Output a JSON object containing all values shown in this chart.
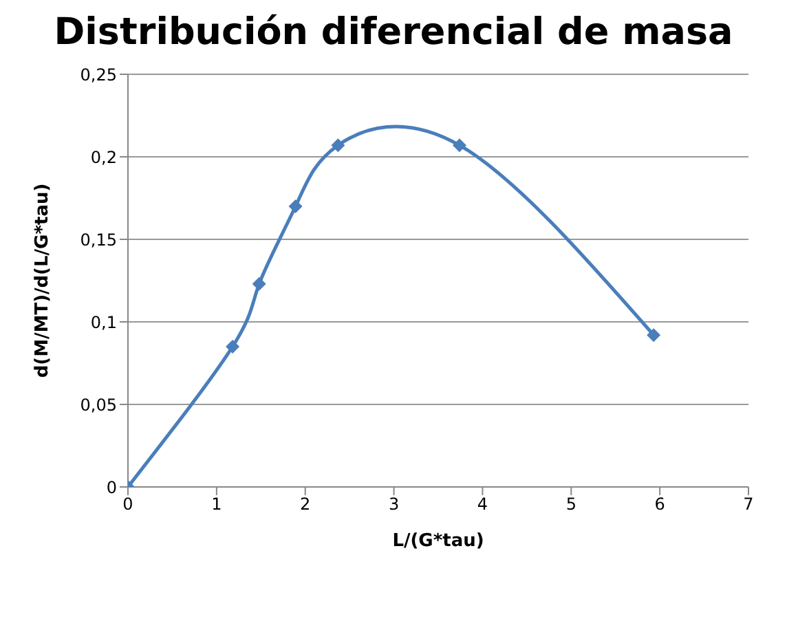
{
  "chart_data": {
    "type": "line",
    "title": "Distribución diferencial de masa",
    "xlabel": "L/(G*tau)",
    "ylabel": "d(M/MT)/d(L/G*tau)",
    "x": [
      0,
      1.18,
      1.48,
      1.89,
      2.37,
      3.74,
      5.93
    ],
    "series": [
      {
        "color": "#4a7ebb",
        "values": [
          0,
          0.085,
          0.123,
          0.17,
          0.207,
          0.207,
          0.092
        ]
      }
    ],
    "xlim": [
      0,
      7
    ],
    "xticks": [
      0,
      1,
      2,
      3,
      4,
      5,
      6,
      7
    ],
    "ylim": [
      0,
      0.25
    ],
    "yticks": [
      {
        "value": 0,
        "label": "0"
      },
      {
        "value": 0.05,
        "label": "0,05"
      },
      {
        "value": 0.1,
        "label": "0,1"
      },
      {
        "value": 0.15,
        "label": "0,15"
      },
      {
        "value": 0.2,
        "label": "0,2"
      },
      {
        "value": 0.25,
        "label": "0,25"
      }
    ],
    "grid": "y",
    "marker": "diamond",
    "line_style": "solid",
    "legend": false
  }
}
